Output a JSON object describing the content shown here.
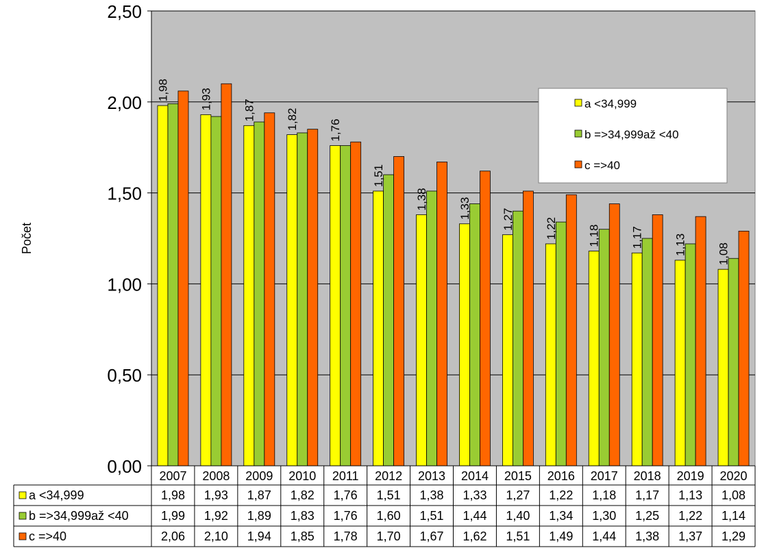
{
  "chart_data": {
    "type": "bar",
    "ylabel": "Počet",
    "ylim": [
      0,
      2.5
    ],
    "yticks": [
      "0,00",
      "0,50",
      "1,00",
      "1,50",
      "2,00",
      "2,50"
    ],
    "grid": true,
    "plot_background": "#c0c0c0",
    "legend_position": "top-right",
    "categories": [
      "2007",
      "2008",
      "2009",
      "2010",
      "2011",
      "2012",
      "2013",
      "2014",
      "2015",
      "2016",
      "2017",
      "2018",
      "2019",
      "2020"
    ],
    "series": [
      {
        "name": "a <34,999",
        "color": "#ffff00",
        "values": [
          1.98,
          1.93,
          1.87,
          1.82,
          1.76,
          1.51,
          1.38,
          1.33,
          1.27,
          1.22,
          1.18,
          1.17,
          1.13,
          1.08
        ],
        "labels": [
          "1,98",
          "1,93",
          "1,87",
          "1,82",
          "1,76",
          "1,51",
          "1,38",
          "1,33",
          "1,27",
          "1,22",
          "1,18",
          "1,17",
          "1,13",
          "1,08"
        ]
      },
      {
        "name": "b =>34,999až <40",
        "color": "#99cc33",
        "values": [
          1.99,
          1.92,
          1.89,
          1.83,
          1.76,
          1.6,
          1.51,
          1.44,
          1.4,
          1.34,
          1.3,
          1.25,
          1.22,
          1.14
        ],
        "labels": [
          "1,99",
          "1,92",
          "1,89",
          "1,83",
          "1,76",
          "1,60",
          "1,51",
          "1,44",
          "1,40",
          "1,34",
          "1,30",
          "1,25",
          "1,22",
          "1,14"
        ]
      },
      {
        "name": "c =>40",
        "color": "#ff6600",
        "values": [
          2.06,
          2.1,
          1.94,
          1.85,
          1.78,
          1.7,
          1.67,
          1.62,
          1.51,
          1.49,
          1.44,
          1.38,
          1.37,
          1.29
        ],
        "labels": [
          "2,06",
          "2,10",
          "1,94",
          "1,85",
          "1,78",
          "1,70",
          "1,67",
          "1,62",
          "1,51",
          "1,49",
          "1,44",
          "1,38",
          "1,37",
          "1,29"
        ]
      }
    ],
    "data_labels_series": 0
  }
}
